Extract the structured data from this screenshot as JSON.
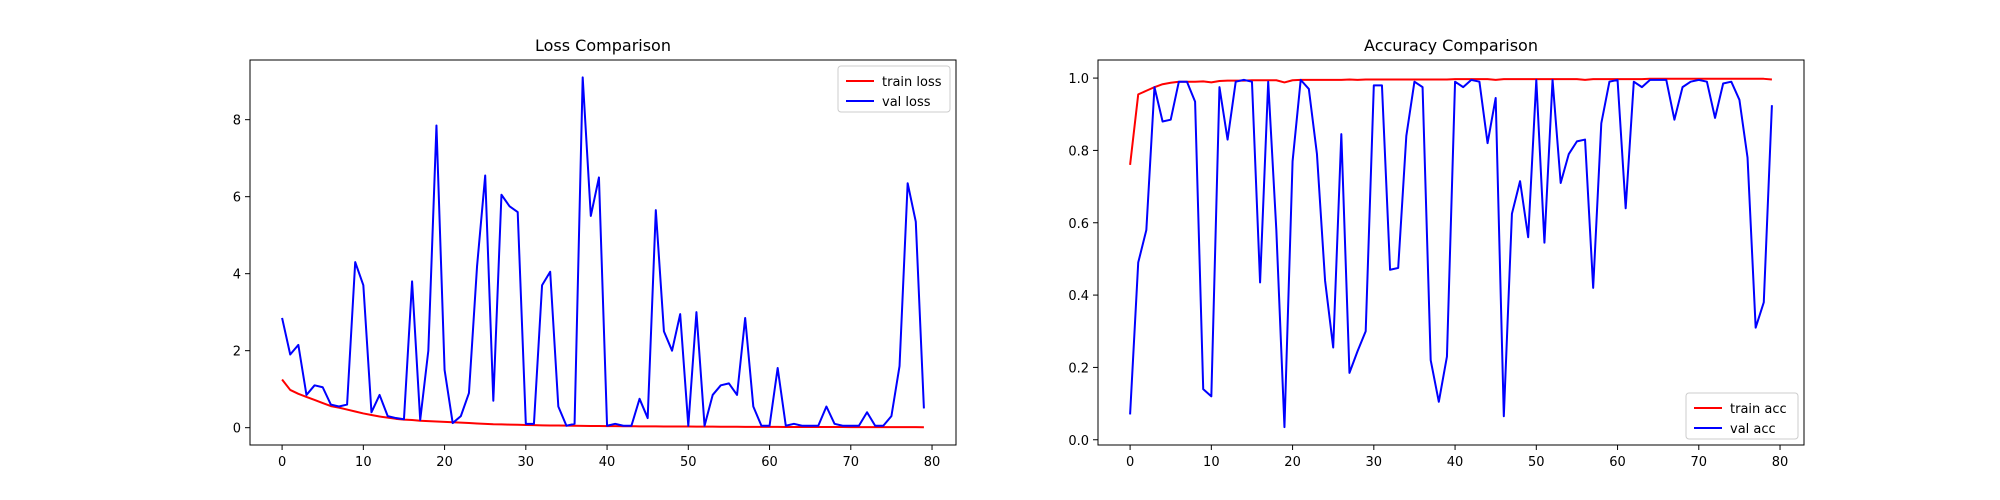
{
  "chart_data": [
    {
      "type": "line",
      "title": "Loss Comparison",
      "xlabel": "",
      "ylabel": "",
      "xlim": [
        -3.95,
        82.95
      ],
      "ylim": [
        -0.45,
        9.55
      ],
      "xticks": [
        0,
        10,
        20,
        30,
        40,
        50,
        60,
        70,
        80
      ],
      "yticks": [
        0,
        2,
        4,
        6,
        8
      ],
      "grid": false,
      "legend_position": "top-right",
      "x": [
        0,
        1,
        2,
        3,
        4,
        5,
        6,
        7,
        8,
        9,
        10,
        11,
        12,
        13,
        14,
        15,
        16,
        17,
        18,
        19,
        20,
        21,
        22,
        23,
        24,
        25,
        26,
        27,
        28,
        29,
        30,
        31,
        32,
        33,
        34,
        35,
        36,
        37,
        38,
        39,
        40,
        41,
        42,
        43,
        44,
        45,
        46,
        47,
        48,
        49,
        50,
        51,
        52,
        53,
        54,
        55,
        56,
        57,
        58,
        59,
        60,
        61,
        62,
        63,
        64,
        65,
        66,
        67,
        68,
        69,
        70,
        71,
        72,
        73,
        74,
        75,
        76,
        77,
        78,
        79
      ],
      "series": [
        {
          "name": "train loss",
          "color": "#ff0000",
          "values": [
            1.25,
            0.98,
            0.88,
            0.8,
            0.72,
            0.64,
            0.56,
            0.52,
            0.47,
            0.42,
            0.37,
            0.33,
            0.29,
            0.26,
            0.23,
            0.21,
            0.2,
            0.18,
            0.17,
            0.16,
            0.15,
            0.14,
            0.13,
            0.12,
            0.11,
            0.1,
            0.09,
            0.085,
            0.08,
            0.075,
            0.07,
            0.065,
            0.06,
            0.058,
            0.055,
            0.052,
            0.05,
            0.048,
            0.045,
            0.043,
            0.04,
            0.039,
            0.038,
            0.036,
            0.035,
            0.034,
            0.033,
            0.032,
            0.031,
            0.03,
            0.029,
            0.028,
            0.027,
            0.026,
            0.025,
            0.024,
            0.023,
            0.022,
            0.022,
            0.021,
            0.02,
            0.02,
            0.019,
            0.019,
            0.018,
            0.018,
            0.017,
            0.017,
            0.016,
            0.016,
            0.015,
            0.015,
            0.015,
            0.014,
            0.014,
            0.014,
            0.013,
            0.013,
            0.013,
            0.012
          ]
        },
        {
          "name": "val loss",
          "color": "#0000ff",
          "values": [
            2.85,
            1.9,
            2.15,
            0.85,
            1.1,
            1.05,
            0.6,
            0.55,
            0.6,
            4.3,
            3.7,
            0.4,
            0.85,
            0.3,
            0.25,
            0.22,
            3.8,
            0.2,
            2.0,
            7.85,
            1.5,
            0.12,
            0.3,
            0.9,
            4.2,
            6.55,
            0.7,
            6.05,
            5.75,
            5.6,
            0.1,
            0.1,
            3.7,
            4.05,
            0.55,
            0.05,
            0.1,
            9.1,
            5.5,
            6.5,
            0.05,
            0.1,
            0.05,
            0.05,
            0.75,
            0.25,
            5.65,
            2.5,
            2.0,
            2.95,
            0.05,
            3.0,
            0.05,
            0.85,
            1.1,
            1.15,
            0.85,
            2.85,
            0.55,
            0.05,
            0.05,
            1.55,
            0.05,
            0.1,
            0.05,
            0.05,
            0.05,
            0.55,
            0.1,
            0.05,
            0.05,
            0.05,
            0.4,
            0.05,
            0.05,
            0.3,
            1.6,
            6.35,
            5.35,
            0.5
          ]
        }
      ]
    },
    {
      "type": "line",
      "title": "Accuracy Comparison",
      "xlabel": "",
      "ylabel": "",
      "xlim": [
        -3.95,
        82.95
      ],
      "ylim": [
        -0.0145,
        1.05
      ],
      "xticks": [
        0,
        10,
        20,
        30,
        40,
        50,
        60,
        70,
        80
      ],
      "yticks": [
        0.0,
        0.2,
        0.4,
        0.6,
        0.8,
        1.0
      ],
      "ytick_labels": [
        "0.0",
        "0.2",
        "0.4",
        "0.6",
        "0.8",
        "1.0"
      ],
      "grid": false,
      "legend_position": "bottom-right",
      "x": [
        0,
        1,
        2,
        3,
        4,
        5,
        6,
        7,
        8,
        9,
        10,
        11,
        12,
        13,
        14,
        15,
        16,
        17,
        18,
        19,
        20,
        21,
        22,
        23,
        24,
        25,
        26,
        27,
        28,
        29,
        30,
        31,
        32,
        33,
        34,
        35,
        36,
        37,
        38,
        39,
        40,
        41,
        42,
        43,
        44,
        45,
        46,
        47,
        48,
        49,
        50,
        51,
        52,
        53,
        54,
        55,
        56,
        57,
        58,
        59,
        60,
        61,
        62,
        63,
        64,
        65,
        66,
        67,
        68,
        69,
        70,
        71,
        72,
        73,
        74,
        75,
        76,
        77,
        78,
        79
      ],
      "series": [
        {
          "name": "train acc",
          "color": "#ff0000",
          "values": [
            0.76,
            0.955,
            0.965,
            0.975,
            0.983,
            0.987,
            0.99,
            0.99,
            0.99,
            0.991,
            0.988,
            0.992,
            0.993,
            0.993,
            0.993,
            0.994,
            0.994,
            0.994,
            0.994,
            0.988,
            0.994,
            0.995,
            0.995,
            0.995,
            0.995,
            0.995,
            0.995,
            0.996,
            0.995,
            0.996,
            0.996,
            0.996,
            0.996,
            0.996,
            0.996,
            0.996,
            0.996,
            0.996,
            0.996,
            0.996,
            0.997,
            0.997,
            0.997,
            0.997,
            0.997,
            0.995,
            0.997,
            0.997,
            0.997,
            0.997,
            0.997,
            0.997,
            0.997,
            0.997,
            0.997,
            0.997,
            0.995,
            0.997,
            0.997,
            0.997,
            0.997,
            0.997,
            0.997,
            0.997,
            0.998,
            0.998,
            0.998,
            0.998,
            0.998,
            0.998,
            0.998,
            0.998,
            0.998,
            0.998,
            0.998,
            0.998,
            0.998,
            0.998,
            0.998,
            0.996
          ]
        },
        {
          "name": "val acc",
          "color": "#0000ff",
          "values": [
            0.07,
            0.49,
            0.58,
            0.975,
            0.88,
            0.885,
            0.99,
            0.99,
            0.935,
            0.14,
            0.12,
            0.975,
            0.83,
            0.99,
            0.995,
            0.99,
            0.435,
            0.99,
            0.58,
            0.035,
            0.77,
            0.995,
            0.97,
            0.79,
            0.44,
            0.255,
            0.845,
            0.185,
            0.245,
            0.3,
            0.98,
            0.98,
            0.47,
            0.475,
            0.84,
            0.99,
            0.975,
            0.22,
            0.105,
            0.23,
            0.99,
            0.975,
            0.995,
            0.99,
            0.82,
            0.945,
            0.065,
            0.625,
            0.715,
            0.56,
            0.995,
            0.545,
            0.995,
            0.71,
            0.79,
            0.825,
            0.83,
            0.42,
            0.875,
            0.99,
            0.995,
            0.64,
            0.99,
            0.975,
            0.995,
            0.995,
            0.995,
            0.885,
            0.975,
            0.99,
            0.995,
            0.99,
            0.89,
            0.985,
            0.99,
            0.94,
            0.78,
            0.31,
            0.38,
            0.925
          ]
        }
      ]
    }
  ]
}
